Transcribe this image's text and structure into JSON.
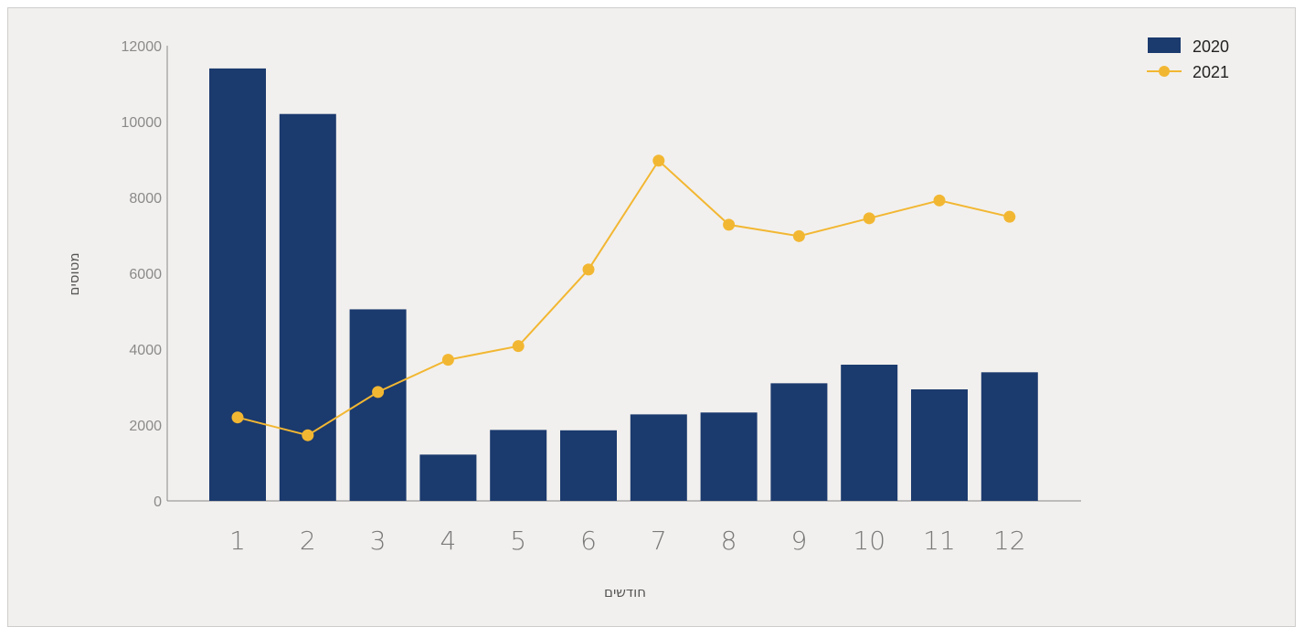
{
  "chart_data": {
    "type": "bar",
    "categories": [
      "1",
      "2",
      "3",
      "4",
      "5",
      "6",
      "7",
      "8",
      "9",
      "10",
      "11",
      "12"
    ],
    "series": [
      {
        "name": "2020",
        "type": "bar",
        "color": "#1b3a6e",
        "values": [
          11400,
          10200,
          5050,
          1220,
          1870,
          1860,
          2280,
          2330,
          3100,
          3590,
          2940,
          3390
        ]
      },
      {
        "name": "2021",
        "type": "line",
        "color": "#f2b732",
        "values": [
          2200,
          1730,
          2870,
          3720,
          4080,
          6100,
          8970,
          7280,
          6980,
          7450,
          7920,
          7490
        ]
      }
    ],
    "xlabel": "חודשים",
    "ylabel": "מטוסים",
    "ylim": [
      0,
      12000
    ],
    "yticks": [
      "0",
      "2000",
      "4000",
      "6000",
      "8000",
      "10000",
      "12000"
    ],
    "grid": false,
    "legend_position": "top-right"
  }
}
